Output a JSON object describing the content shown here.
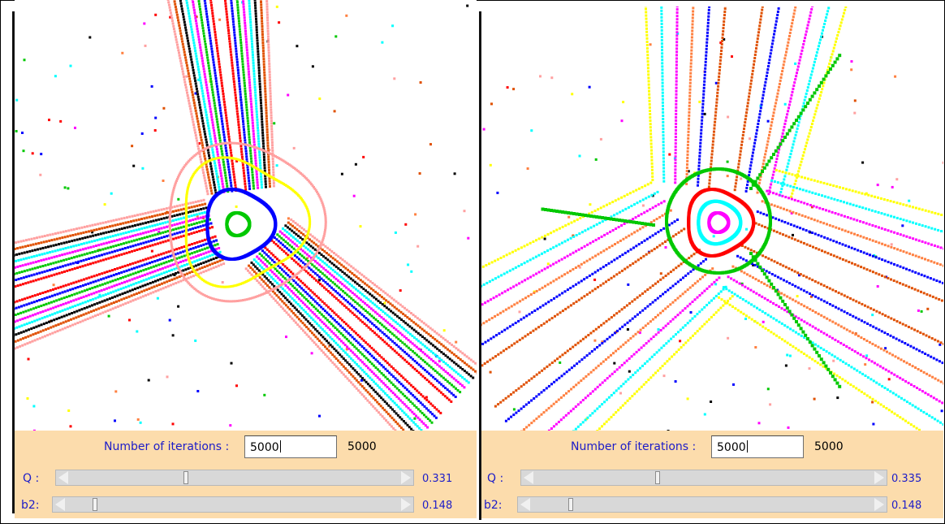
{
  "panels": [
    {
      "iterations_label": "Number of iterations :",
      "iterations_input": "5000",
      "iterations_value": "5000",
      "q": {
        "label": "Q :",
        "value": "0.331",
        "position": 0.35
      },
      "b2": {
        "label": "b2:",
        "value": "0.148",
        "position": 0.08
      }
    },
    {
      "iterations_label": "Number of iterations :",
      "iterations_input": "5000",
      "iterations_value": "5000",
      "q": {
        "label": "Q :",
        "value": "0.335",
        "position": 0.36
      },
      "b2": {
        "label": "b2:",
        "value": "0.148",
        "position": 0.11
      }
    }
  ],
  "colors": {
    "control_bg": "#fcdcac",
    "label": "#1c1cc8",
    "orbits": [
      "#ff0000",
      "#0000ff",
      "#00c800",
      "#ff00ff",
      "#00ffff",
      "#ffff00",
      "#000000",
      "#ffa0a0",
      "#e05000",
      "#ff8040"
    ]
  }
}
